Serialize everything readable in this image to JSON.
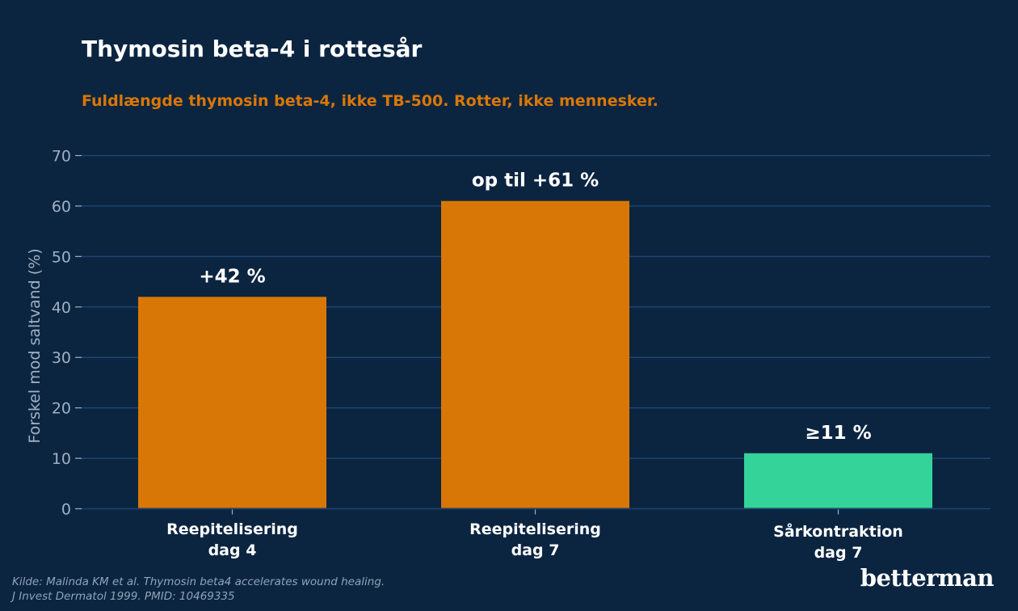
{
  "header": {
    "title": "Thymosin beta-4 i rottesår",
    "subtitle": "Fuldlængde thymosin beta-4, ikke TB-500. Rotter, ikke mennesker."
  },
  "chart_data": {
    "type": "bar",
    "categories": [
      [
        "Reepitelisering",
        "dag 4"
      ],
      [
        "Reepitelisering",
        "dag 7"
      ],
      [
        "Sårkontraktion",
        "dag 7"
      ]
    ],
    "values": [
      42,
      61,
      11
    ],
    "data_labels": [
      "+42 %",
      "op til +61 %",
      "≥11 %"
    ],
    "bar_colors": [
      "#d97706",
      "#d97706",
      "#34d399"
    ],
    "ylabel": "Forskel mod saltvand (%)",
    "yticks": [
      0,
      10,
      20,
      30,
      40,
      50,
      60,
      70
    ],
    "ylim": [
      0,
      70
    ],
    "grid": true
  },
  "footer": {
    "source_line1": "Kilde: Malinda KM et al. Thymosin beta4 accelerates wound healing.",
    "source_line2": "J Invest Dermatol 1999. PMID: 10469335",
    "logo": "betterman"
  },
  "colors": {
    "background": "#0b2541",
    "grid": "#1e4470",
    "axis_text": "#9fb0c3",
    "label_text": "#ffffff",
    "accent": "#d97706"
  }
}
